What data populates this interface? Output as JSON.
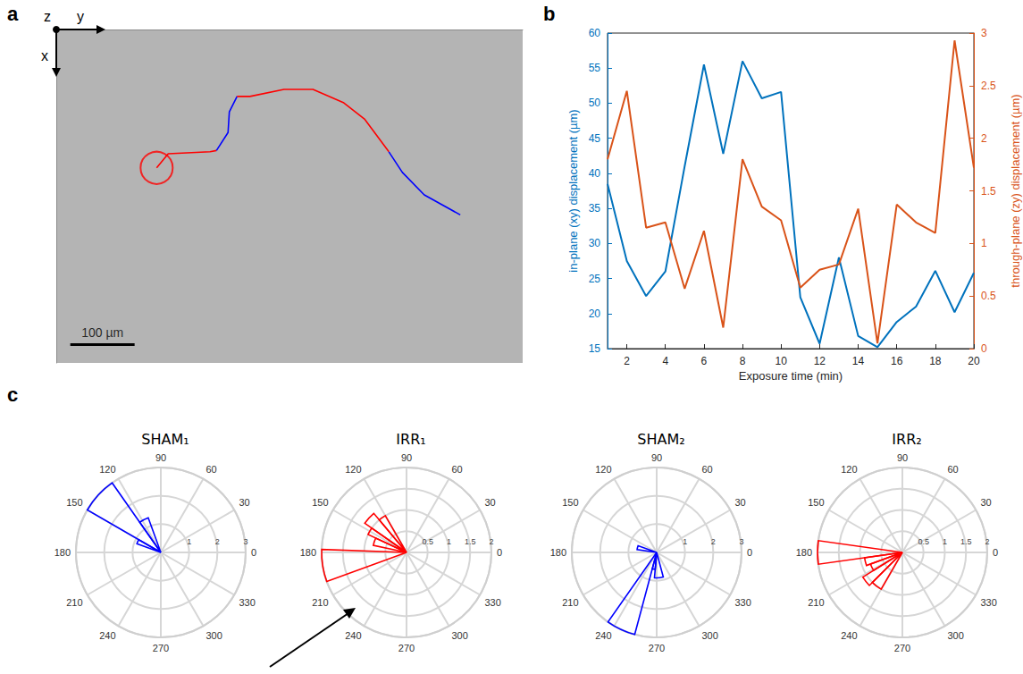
{
  "chart_data": [
    {
      "panel": "a",
      "type": "trajectory",
      "triad": {
        "x": "x",
        "y": "y",
        "z": "z"
      },
      "xlim": [
        0,
        725
      ],
      "ylim": [
        0,
        518
      ],
      "tick_labels": false,
      "scale_bar": {
        "length": 100,
        "label": "100 µm"
      },
      "series": [
        {
          "color": "#ff0000",
          "x": [
            156,
            174,
            239,
            249
          ],
          "y": [
            215,
            193,
            190,
            188
          ]
        },
        {
          "color": "#0000ff",
          "x": [
            249,
            267,
            269,
            281
          ],
          "y": [
            188,
            160,
            128,
            104
          ]
        },
        {
          "color": "#ff0000",
          "x": [
            281,
            301,
            354,
            399,
            447,
            479,
            517
          ],
          "y": [
            104,
            104,
            93,
            93,
            114,
            139,
            190
          ]
        },
        {
          "color": "#0000ff",
          "x": [
            517,
            538,
            572,
            628
          ],
          "y": [
            190,
            222,
            257,
            288
          ]
        }
      ]
    },
    {
      "panel": "b",
      "type": "line",
      "x": [
        1,
        2,
        3,
        4,
        5,
        6,
        7,
        8,
        9,
        10,
        11,
        12,
        13,
        14,
        15,
        16,
        17,
        18,
        19,
        20
      ],
      "xlim": [
        1,
        20
      ],
      "xticks": [
        2,
        4,
        6,
        8,
        10,
        12,
        14,
        16,
        18,
        20
      ],
      "xlabel": "Exposure time (min)",
      "ylabel": "in-plane (xy) displacement (µm)",
      "ylim": [
        15,
        60
      ],
      "yticks": [
        15,
        20,
        25,
        30,
        35,
        40,
        45,
        50,
        55,
        60
      ],
      "y2label": "through-plane (zy) displacement (µm)",
      "y2lim": [
        0,
        3
      ],
      "y2ticks": [
        0,
        0.5,
        1,
        1.5,
        2,
        2.5,
        3
      ],
      "series": [
        {
          "color": "#0072bd",
          "values": [
            38.5,
            27.5,
            22.5,
            26,
            41,
            55.5,
            42.8,
            56,
            50.7,
            51.6,
            22.3,
            15.7,
            28,
            16.8,
            15.2,
            18.8,
            21,
            26.1,
            20.2,
            25.8
          ]
        },
        {
          "color": "#d95319",
          "axis": "y2",
          "values": [
            1.8,
            2.45,
            1.15,
            1.2,
            0.57,
            1.12,
            0.2,
            1.8,
            1.35,
            1.22,
            0.58,
            0.75,
            0.8,
            1.33,
            0.05,
            1.37,
            1.2,
            1.1,
            2.93,
            1.72
          ]
        }
      ]
    },
    {
      "panel": "c",
      "type": "polar_histogram",
      "title": "SHAM₁",
      "color": "#0000ff",
      "bins": [
        110,
        125,
        150,
        160
      ],
      "values": [
        1.3,
        3,
        0.9
      ],
      "rlim": [
        0,
        3
      ],
      "rticks": [
        1,
        2,
        3
      ],
      "thetaticks": [
        0,
        30,
        60,
        90,
        120,
        150,
        180,
        210,
        240,
        270,
        300,
        330
      ]
    },
    {
      "type": "polar_histogram",
      "title": "IRR₁",
      "color": "#ff0000",
      "bins": [
        120,
        130,
        145,
        155,
        168,
        178,
        200
      ],
      "values": [
        1.0,
        1.2,
        1.0,
        0.8,
        0,
        2
      ],
      "rlim": [
        0,
        2
      ],
      "rticks": [
        0.5,
        1,
        1.5,
        2
      ],
      "thetaticks": [
        0,
        30,
        60,
        90,
        120,
        150,
        180,
        210,
        240,
        270,
        300,
        330
      ]
    },
    {
      "type": "polar_histogram",
      "title": "SHAM₂",
      "color": "#0000ff",
      "bins": [
        160,
        172,
        235,
        255,
        265,
        285
      ],
      "values": [
        0.7,
        0,
        3,
        0.6,
        0.9
      ],
      "rlim": [
        0,
        3
      ],
      "rticks": [
        1,
        2,
        3
      ],
      "thetaticks": [
        0,
        30,
        60,
        90,
        120,
        150,
        180,
        210,
        240,
        270,
        300,
        330
      ]
    },
    {
      "type": "polar_histogram",
      "title": "IRR₂",
      "color": "#ff0000",
      "bins": [
        172,
        188,
        200,
        212,
        225,
        240
      ],
      "values": [
        2,
        0.9,
        0.8,
        1.1,
        1.0
      ],
      "rlim": [
        0,
        2
      ],
      "rticks": [
        0.5,
        1,
        1.5,
        2
      ],
      "thetaticks": [
        0,
        30,
        60,
        90,
        120,
        150,
        180,
        210,
        240,
        270,
        300,
        330
      ]
    }
  ]
}
